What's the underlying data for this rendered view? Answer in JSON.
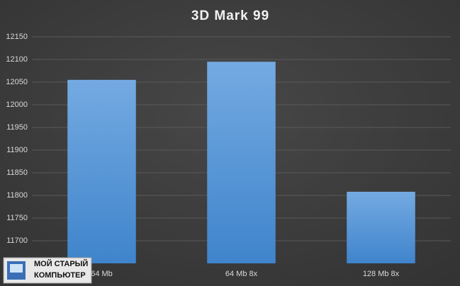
{
  "chart_data": {
    "type": "bar",
    "title": "3D Mark 99",
    "categories": [
      "64 Mb",
      "64 Mb 8x",
      "128 Mb 8x"
    ],
    "values": [
      12055,
      12095,
      11808
    ],
    "color": "#5b9bd5",
    "ylim": [
      11650,
      12150
    ],
    "yticks": [
      11700,
      11750,
      11800,
      11850,
      11900,
      11950,
      12000,
      12050,
      12100,
      12150
    ],
    "grid": true
  },
  "watermark": {
    "line1": "МОЙ СТАРЫЙ",
    "line2": "КОМПЬЮТЕР"
  }
}
